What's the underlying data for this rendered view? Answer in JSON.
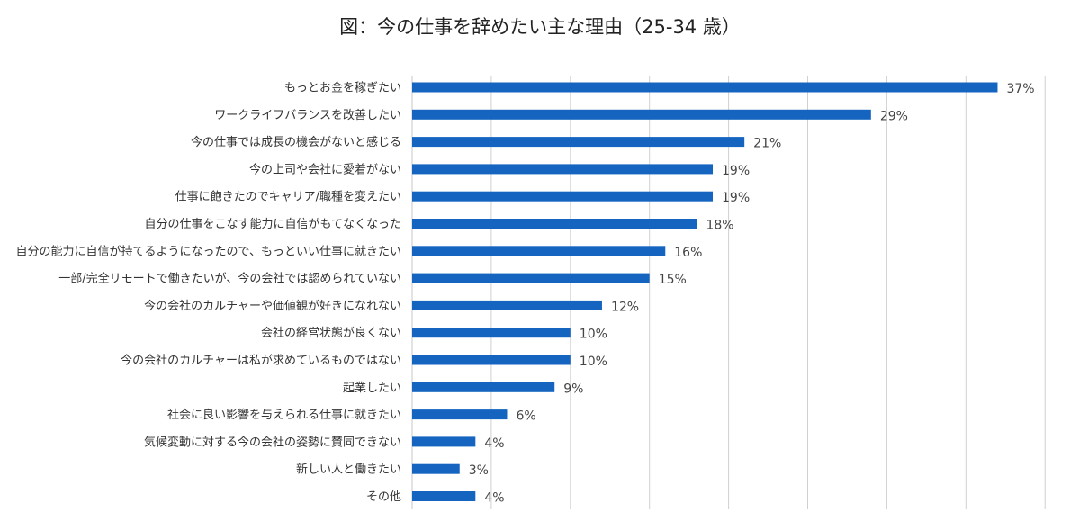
{
  "chart_data": {
    "type": "bar",
    "orientation": "horizontal",
    "title": "図：今の仕事を辞めたい主な理由（25-34 歳）",
    "categories": [
      "もっとお金を稼ぎたい",
      "ワークライフバランスを改善したい",
      "今の仕事では成長の機会がないと感じる",
      "今の上司や会社に愛着がない",
      "仕事に飽きたのでキャリア/職種を変えたい",
      "自分の仕事をこなす能力に自信がもてなくなった",
      "自分の能力に自信が持てるようになったので、もっといい仕事に就きたい",
      "一部/完全リモートで働きたいが、今の会社では認められていない",
      "今の会社のカルチャーや価値観が好きになれない",
      "会社の経営状態が良くない",
      "今の会社のカルチャーは私が求めているものではない",
      "起業したい",
      "社会に良い影響を与えられる仕事に就きたい",
      "気候変動に対する今の会社の姿勢に賛同できない",
      "新しい人と働きたい",
      "その他"
    ],
    "values": [
      37,
      29,
      21,
      19,
      19,
      18,
      16,
      15,
      12,
      10,
      10,
      9,
      6,
      4,
      3,
      4
    ],
    "value_labels": [
      "37%",
      "29%",
      "21%",
      "19%",
      "19%",
      "18%",
      "16%",
      "15%",
      "12%",
      "10%",
      "10%",
      "9%",
      "6%",
      "4%",
      "3%",
      "4%"
    ],
    "unit": "%",
    "xlim": [
      0,
      40
    ],
    "grid": true,
    "bar_color": "#1565c0",
    "grid_color": "#d0d0d0"
  }
}
